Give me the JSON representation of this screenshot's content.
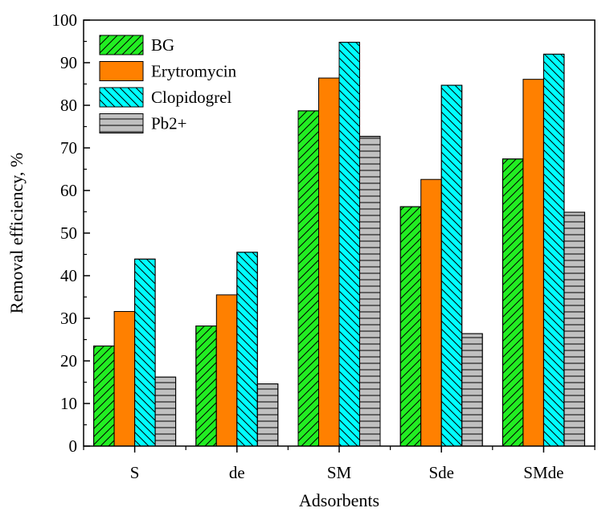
{
  "chart_data": {
    "type": "bar",
    "xlabel": "Adsorbents",
    "ylabel": "Removal efficiency, %",
    "categories": [
      "S",
      "de",
      "SM",
      "Sde",
      "SMde"
    ],
    "ylim": [
      0,
      100
    ],
    "yticks": [
      "0",
      "10",
      "20",
      "30",
      "40",
      "50",
      "60",
      "70",
      "80",
      "90",
      "100"
    ],
    "legend_position": "top-left",
    "series": [
      {
        "name": "BG",
        "values": [
          23.5,
          28.2,
          78.7,
          56.2,
          67.4
        ],
        "color": "#22ee22",
        "pattern": "diagonal-forward"
      },
      {
        "name": "Erytromycin",
        "values": [
          31.6,
          35.5,
          86.4,
          62.6,
          86.1
        ],
        "color": "#ff8000",
        "pattern": "solid"
      },
      {
        "name": "Clopidogrel",
        "values": [
          43.9,
          45.5,
          94.8,
          84.7,
          92.0
        ],
        "color": "#00ffff",
        "pattern": "diagonal-back"
      },
      {
        "name": "Pb2+",
        "values": [
          16.2,
          14.6,
          72.7,
          26.4,
          54.9
        ],
        "color": "#c0c0c0",
        "pattern": "horizontal"
      }
    ]
  }
}
